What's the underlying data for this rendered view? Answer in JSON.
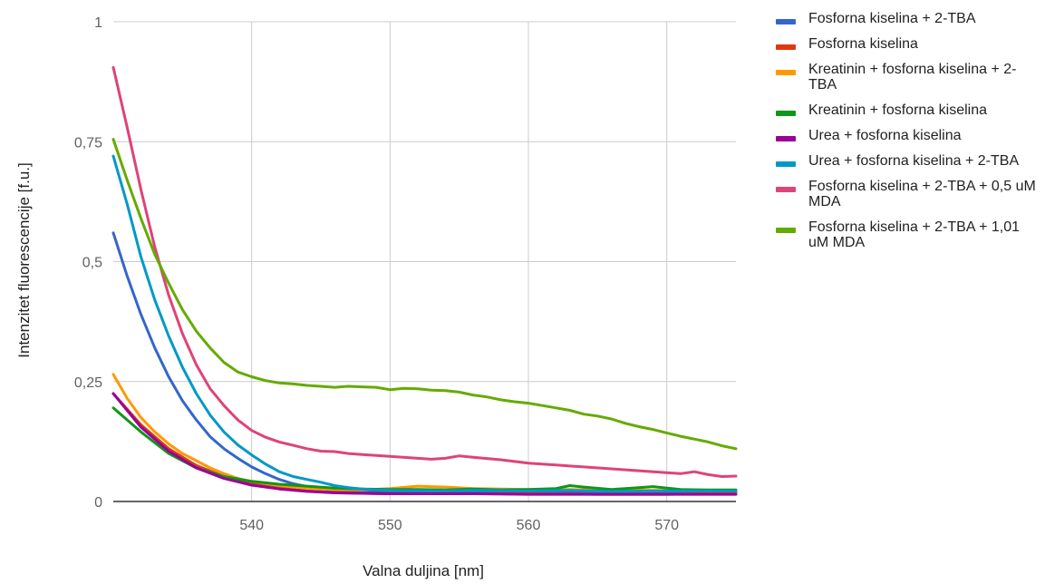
{
  "chart_data": {
    "type": "line",
    "title": "",
    "xlabel": "Valna duljina [nm]",
    "ylabel": "Intenzitet fluorescencije [f.u.]",
    "xlim": [
      530,
      575
    ],
    "ylim": [
      0,
      1
    ],
    "x_ticks": [
      540,
      550,
      560,
      570
    ],
    "x_tick_labels": [
      "540",
      "550",
      "560",
      "570"
    ],
    "y_ticks": [
      0,
      0.25,
      0.5,
      0.75,
      1
    ],
    "y_tick_labels": [
      "0",
      "0,25",
      "0,5",
      "0,75",
      "1"
    ],
    "grid": true,
    "legend_position": "right",
    "series": [
      {
        "name": "Fosforna kiselina + 2-TBA",
        "color": "#3366cc",
        "points": [
          [
            530,
            0.56
          ],
          [
            531,
            0.47
          ],
          [
            532,
            0.39
          ],
          [
            533,
            0.32
          ],
          [
            534,
            0.26
          ],
          [
            535,
            0.21
          ],
          [
            536,
            0.17
          ],
          [
            537,
            0.135
          ],
          [
            538,
            0.11
          ],
          [
            539,
            0.09
          ],
          [
            540,
            0.072
          ],
          [
            541,
            0.058
          ],
          [
            542,
            0.046
          ],
          [
            543,
            0.037
          ],
          [
            544,
            0.031
          ],
          [
            545,
            0.027
          ],
          [
            546,
            0.024
          ],
          [
            547,
            0.022
          ],
          [
            548,
            0.021
          ],
          [
            549,
            0.02
          ],
          [
            550,
            0.02
          ],
          [
            553,
            0.02
          ],
          [
            556,
            0.019
          ],
          [
            560,
            0.02
          ],
          [
            565,
            0.018
          ],
          [
            570,
            0.02
          ],
          [
            575,
            0.019
          ]
        ]
      },
      {
        "name": "Fosforna kiselina",
        "color": "#dc3912",
        "points": [
          [
            530,
            0.225
          ],
          [
            532,
            0.16
          ],
          [
            534,
            0.11
          ],
          [
            536,
            0.075
          ],
          [
            538,
            0.052
          ],
          [
            540,
            0.037
          ],
          [
            542,
            0.028
          ],
          [
            544,
            0.022
          ],
          [
            546,
            0.019
          ],
          [
            548,
            0.017
          ],
          [
            550,
            0.016
          ],
          [
            553,
            0.016
          ],
          [
            556,
            0.016
          ],
          [
            560,
            0.016
          ],
          [
            565,
            0.015
          ],
          [
            570,
            0.015
          ],
          [
            573,
            0.016
          ],
          [
            575,
            0.016
          ]
        ]
      },
      {
        "name": "Kreatinin + fosforna kiselina + 2-TBA",
        "color": "#ff9900",
        "points": [
          [
            530,
            0.265
          ],
          [
            531,
            0.215
          ],
          [
            532,
            0.175
          ],
          [
            533,
            0.145
          ],
          [
            534,
            0.12
          ],
          [
            535,
            0.1
          ],
          [
            536,
            0.085
          ],
          [
            537,
            0.07
          ],
          [
            538,
            0.058
          ],
          [
            539,
            0.048
          ],
          [
            540,
            0.042
          ],
          [
            542,
            0.033
          ],
          [
            544,
            0.028
          ],
          [
            546,
            0.025
          ],
          [
            548,
            0.024
          ],
          [
            550,
            0.027
          ],
          [
            552,
            0.032
          ],
          [
            554,
            0.03
          ],
          [
            556,
            0.027
          ],
          [
            558,
            0.026
          ],
          [
            560,
            0.025
          ],
          [
            563,
            0.025
          ],
          [
            566,
            0.024
          ],
          [
            570,
            0.023
          ],
          [
            575,
            0.022
          ]
        ]
      },
      {
        "name": "Kreatinin + fosforna kiselina",
        "color": "#109618",
        "points": [
          [
            530,
            0.195
          ],
          [
            532,
            0.145
          ],
          [
            534,
            0.1
          ],
          [
            536,
            0.07
          ],
          [
            538,
            0.052
          ],
          [
            540,
            0.042
          ],
          [
            542,
            0.036
          ],
          [
            544,
            0.032
          ],
          [
            546,
            0.028
          ],
          [
            548,
            0.026
          ],
          [
            550,
            0.025
          ],
          [
            552,
            0.025
          ],
          [
            554,
            0.024
          ],
          [
            556,
            0.026
          ],
          [
            558,
            0.024
          ],
          [
            560,
            0.025
          ],
          [
            562,
            0.027
          ],
          [
            563,
            0.033
          ],
          [
            564,
            0.03
          ],
          [
            566,
            0.025
          ],
          [
            568,
            0.029
          ],
          [
            569,
            0.031
          ],
          [
            571,
            0.025
          ],
          [
            573,
            0.024
          ],
          [
            575,
            0.024
          ]
        ]
      },
      {
        "name": "Urea + fosforna kiselina",
        "color": "#990099",
        "points": [
          [
            530,
            0.225
          ],
          [
            532,
            0.155
          ],
          [
            534,
            0.105
          ],
          [
            536,
            0.07
          ],
          [
            538,
            0.048
          ],
          [
            540,
            0.034
          ],
          [
            542,
            0.026
          ],
          [
            544,
            0.021
          ],
          [
            546,
            0.018
          ],
          [
            548,
            0.017
          ],
          [
            550,
            0.016
          ],
          [
            553,
            0.016
          ],
          [
            556,
            0.016
          ],
          [
            560,
            0.015
          ],
          [
            565,
            0.015
          ],
          [
            570,
            0.015
          ],
          [
            575,
            0.015
          ]
        ]
      },
      {
        "name": "Urea + fosforna kiselina + 2-TBA",
        "color": "#0099c6",
        "points": [
          [
            530,
            0.72
          ],
          [
            531,
            0.62
          ],
          [
            532,
            0.51
          ],
          [
            533,
            0.42
          ],
          [
            534,
            0.345
          ],
          [
            535,
            0.28
          ],
          [
            536,
            0.225
          ],
          [
            537,
            0.18
          ],
          [
            538,
            0.145
          ],
          [
            539,
            0.118
          ],
          [
            540,
            0.097
          ],
          [
            541,
            0.078
          ],
          [
            542,
            0.062
          ],
          [
            543,
            0.052
          ],
          [
            544,
            0.046
          ],
          [
            545,
            0.04
          ],
          [
            546,
            0.033
          ],
          [
            547,
            0.029
          ],
          [
            548,
            0.026
          ],
          [
            549,
            0.024
          ],
          [
            550,
            0.023
          ],
          [
            553,
            0.022
          ],
          [
            556,
            0.023
          ],
          [
            560,
            0.022
          ],
          [
            563,
            0.023
          ],
          [
            566,
            0.021
          ],
          [
            570,
            0.022
          ],
          [
            575,
            0.022
          ]
        ]
      },
      {
        "name": "Fosforna kiselina + 2-TBA + 0,5 uM MDA",
        "color": "#dd4477",
        "points": [
          [
            530,
            0.905
          ],
          [
            531,
            0.78
          ],
          [
            532,
            0.65
          ],
          [
            533,
            0.53
          ],
          [
            534,
            0.43
          ],
          [
            535,
            0.35
          ],
          [
            536,
            0.285
          ],
          [
            537,
            0.235
          ],
          [
            538,
            0.2
          ],
          [
            539,
            0.17
          ],
          [
            540,
            0.148
          ],
          [
            541,
            0.134
          ],
          [
            542,
            0.124
          ],
          [
            543,
            0.117
          ],
          [
            544,
            0.11
          ],
          [
            545,
            0.105
          ],
          [
            546,
            0.104
          ],
          [
            547,
            0.1
          ],
          [
            548,
            0.098
          ],
          [
            549,
            0.096
          ],
          [
            550,
            0.094
          ],
          [
            552,
            0.09
          ],
          [
            553,
            0.088
          ],
          [
            554,
            0.09
          ],
          [
            555,
            0.095
          ],
          [
            556,
            0.092
          ],
          [
            558,
            0.087
          ],
          [
            560,
            0.08
          ],
          [
            562,
            0.076
          ],
          [
            564,
            0.072
          ],
          [
            566,
            0.068
          ],
          [
            568,
            0.064
          ],
          [
            570,
            0.06
          ],
          [
            571,
            0.058
          ],
          [
            572,
            0.062
          ],
          [
            573,
            0.056
          ],
          [
            574,
            0.052
          ],
          [
            575,
            0.053
          ]
        ]
      },
      {
        "name": "Fosforna kiselina + 2-TBA + 1,01 uM MDA",
        "color": "#66aa00",
        "points": [
          [
            530,
            0.755
          ],
          [
            531,
            0.67
          ],
          [
            532,
            0.59
          ],
          [
            533,
            0.515
          ],
          [
            534,
            0.455
          ],
          [
            535,
            0.4
          ],
          [
            536,
            0.355
          ],
          [
            537,
            0.32
          ],
          [
            538,
            0.29
          ],
          [
            539,
            0.27
          ],
          [
            540,
            0.26
          ],
          [
            541,
            0.252
          ],
          [
            542,
            0.247
          ],
          [
            543,
            0.245
          ],
          [
            544,
            0.242
          ],
          [
            545,
            0.24
          ],
          [
            546,
            0.238
          ],
          [
            547,
            0.24
          ],
          [
            548,
            0.239
          ],
          [
            549,
            0.238
          ],
          [
            550,
            0.233
          ],
          [
            551,
            0.236
          ],
          [
            552,
            0.235
          ],
          [
            553,
            0.232
          ],
          [
            554,
            0.231
          ],
          [
            555,
            0.228
          ],
          [
            556,
            0.222
          ],
          [
            557,
            0.218
          ],
          [
            558,
            0.212
          ],
          [
            559,
            0.208
          ],
          [
            560,
            0.205
          ],
          [
            561,
            0.2
          ],
          [
            562,
            0.195
          ],
          [
            563,
            0.19
          ],
          [
            564,
            0.182
          ],
          [
            565,
            0.178
          ],
          [
            566,
            0.172
          ],
          [
            567,
            0.163
          ],
          [
            568,
            0.156
          ],
          [
            569,
            0.15
          ],
          [
            570,
            0.143
          ],
          [
            571,
            0.136
          ],
          [
            572,
            0.13
          ],
          [
            573,
            0.124
          ],
          [
            574,
            0.116
          ],
          [
            575,
            0.11
          ]
        ]
      }
    ]
  }
}
